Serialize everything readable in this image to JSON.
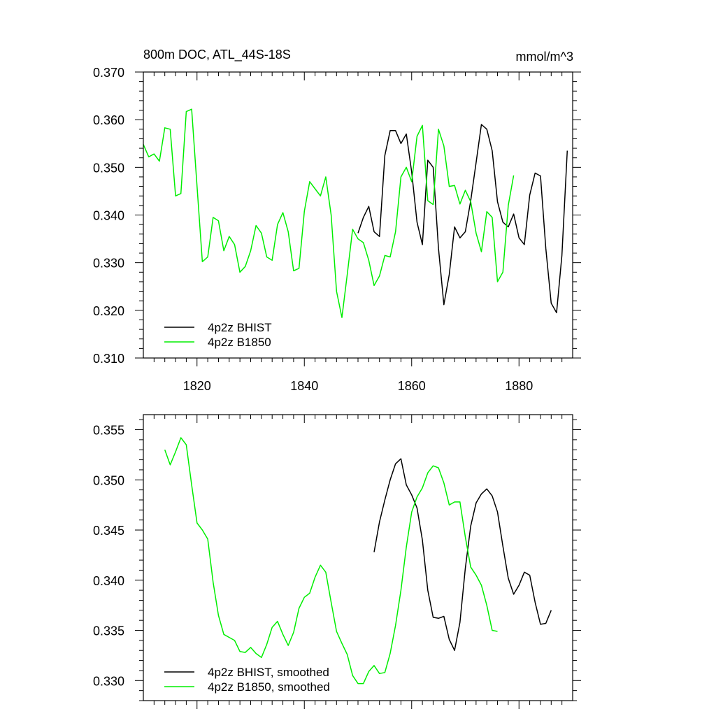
{
  "colors": {
    "bhist": "#000000",
    "b1850": "#00ee00"
  },
  "chart_data": [
    {
      "type": "line",
      "title": "800m DOC, ATL_44S-18S",
      "units": "mmol/m^3",
      "xlim": [
        1810,
        1890
      ],
      "ylim": [
        0.31,
        0.37
      ],
      "x_ticks": [
        1820,
        1840,
        1860,
        1880
      ],
      "x_tick_labels": [
        "1820",
        "1840",
        "1860",
        "1880"
      ],
      "y_ticks": [
        0.31,
        0.32,
        0.33,
        0.34,
        0.35,
        0.36,
        0.37
      ],
      "y_tick_labels": [
        "0.310",
        "0.320",
        "0.330",
        "0.340",
        "0.350",
        "0.360",
        "0.370"
      ],
      "legend": [
        "4p2z BHIST",
        "4p2z B1850"
      ],
      "legend_position": "bottom-left",
      "series": [
        {
          "name": "4p2z BHIST",
          "color": "#000000",
          "x": [
            1850,
            1851,
            1852,
            1853,
            1854,
            1855,
            1856,
            1857,
            1858,
            1859,
            1860,
            1861,
            1862,
            1863,
            1864,
            1865,
            1866,
            1867,
            1868,
            1869,
            1870,
            1871,
            1872,
            1873,
            1874,
            1875,
            1876,
            1877,
            1878,
            1879,
            1880,
            1881,
            1882,
            1883,
            1884,
            1885,
            1886,
            1887,
            1888,
            1889
          ],
          "y": [
            0.3362,
            0.3395,
            0.3418,
            0.3365,
            0.3355,
            0.3525,
            0.3577,
            0.3577,
            0.355,
            0.357,
            0.349,
            0.3385,
            0.3338,
            0.3515,
            0.35,
            0.333,
            0.3212,
            0.3275,
            0.3375,
            0.3352,
            0.3365,
            0.343,
            0.351,
            0.359,
            0.358,
            0.3535,
            0.3428,
            0.3385,
            0.3375,
            0.3402,
            0.3352,
            0.3338,
            0.3442,
            0.3488,
            0.3482,
            0.333,
            0.3215,
            0.3195,
            0.3315,
            0.3535
          ]
        },
        {
          "name": "4p2z B1850",
          "color": "#00ee00",
          "x": [
            1810,
            1811,
            1812,
            1813,
            1814,
            1815,
            1816,
            1817,
            1818,
            1819,
            1820,
            1821,
            1822,
            1823,
            1824,
            1825,
            1826,
            1827,
            1828,
            1829,
            1830,
            1831,
            1832,
            1833,
            1834,
            1835,
            1836,
            1837,
            1838,
            1839,
            1840,
            1841,
            1842,
            1843,
            1844,
            1845,
            1846,
            1847,
            1848,
            1849,
            1850,
            1851,
            1852,
            1853,
            1854,
            1855,
            1856,
            1857,
            1858,
            1859,
            1860,
            1861,
            1862,
            1863,
            1864,
            1865,
            1866,
            1867,
            1868,
            1869,
            1870,
            1871,
            1872,
            1873,
            1874,
            1875,
            1876,
            1877,
            1878,
            1879
          ],
          "y": [
            0.3548,
            0.3522,
            0.3528,
            0.3513,
            0.3583,
            0.358,
            0.344,
            0.3445,
            0.3617,
            0.3622,
            0.346,
            0.3302,
            0.3312,
            0.3395,
            0.3388,
            0.3325,
            0.3355,
            0.3338,
            0.328,
            0.3292,
            0.3325,
            0.3378,
            0.3362,
            0.3312,
            0.3305,
            0.338,
            0.3405,
            0.3365,
            0.3283,
            0.3288,
            0.3408,
            0.347,
            0.3455,
            0.344,
            0.348,
            0.34,
            0.324,
            0.3185,
            0.3275,
            0.337,
            0.335,
            0.3342,
            0.3305,
            0.3252,
            0.3272,
            0.3315,
            0.3312,
            0.3365,
            0.348,
            0.35,
            0.347,
            0.3565,
            0.3588,
            0.343,
            0.3422,
            0.358,
            0.3545,
            0.346,
            0.3462,
            0.3423,
            0.3452,
            0.3428,
            0.3362,
            0.3323,
            0.3407,
            0.3395,
            0.326,
            0.328,
            0.342,
            0.3483
          ]
        }
      ]
    },
    {
      "type": "line",
      "xlim": [
        1810,
        1890
      ],
      "ylim": [
        0.328,
        0.3565
      ],
      "x_ticks": [
        1820,
        1840,
        1860,
        1880
      ],
      "y_ticks": [
        0.33,
        0.335,
        0.34,
        0.345,
        0.35,
        0.355
      ],
      "y_tick_labels": [
        "0.330",
        "0.335",
        "0.340",
        "0.345",
        "0.350",
        "0.355"
      ],
      "legend": [
        "4p2z BHIST, smoothed",
        "4p2z B1850, smoothed"
      ],
      "legend_position": "bottom-left",
      "series": [
        {
          "name": "4p2z BHIST, smoothed",
          "color": "#000000",
          "x": [
            1853,
            1854,
            1855,
            1856,
            1857,
            1858,
            1859,
            1860,
            1861,
            1862,
            1863,
            1864,
            1865,
            1866,
            1867,
            1868,
            1869,
            1870,
            1871,
            1872,
            1873,
            1874,
            1875,
            1876,
            1877,
            1878,
            1879,
            1880,
            1881,
            1882,
            1883,
            1884,
            1885,
            1886
          ],
          "y": [
            0.3428,
            0.3458,
            0.348,
            0.35,
            0.3516,
            0.3521,
            0.3495,
            0.3485,
            0.3472,
            0.344,
            0.339,
            0.3363,
            0.3362,
            0.3364,
            0.3341,
            0.333,
            0.3358,
            0.3412,
            0.3454,
            0.3477,
            0.3486,
            0.3491,
            0.3484,
            0.3468,
            0.3434,
            0.3402,
            0.3386,
            0.3395,
            0.3408,
            0.3405,
            0.3378,
            0.3356,
            0.3357,
            0.337
          ]
        },
        {
          "name": "4p2z B1850, smoothed",
          "color": "#00ee00",
          "x": [
            1814,
            1815,
            1816,
            1817,
            1818,
            1819,
            1820,
            1821,
            1822,
            1823,
            1824,
            1825,
            1826,
            1827,
            1828,
            1829,
            1830,
            1831,
            1832,
            1833,
            1834,
            1835,
            1836,
            1837,
            1838,
            1839,
            1840,
            1841,
            1842,
            1843,
            1844,
            1845,
            1846,
            1847,
            1848,
            1849,
            1850,
            1851,
            1852,
            1853,
            1854,
            1855,
            1856,
            1857,
            1858,
            1859,
            1860,
            1861,
            1862,
            1863,
            1864,
            1865,
            1866,
            1867,
            1868,
            1869,
            1870,
            1871,
            1872,
            1873,
            1874,
            1875,
            1876
          ],
          "y": [
            0.353,
            0.3515,
            0.3528,
            0.3542,
            0.3535,
            0.3495,
            0.3457,
            0.345,
            0.3441,
            0.3398,
            0.3365,
            0.3346,
            0.3343,
            0.334,
            0.3329,
            0.3328,
            0.3333,
            0.3327,
            0.3323,
            0.3336,
            0.3353,
            0.3359,
            0.3346,
            0.3335,
            0.3348,
            0.3372,
            0.3383,
            0.3387,
            0.3403,
            0.3415,
            0.3408,
            0.3378,
            0.3349,
            0.3337,
            0.3326,
            0.3305,
            0.3297,
            0.3297,
            0.3309,
            0.3315,
            0.3307,
            0.3308,
            0.3327,
            0.3355,
            0.339,
            0.3433,
            0.3468,
            0.3483,
            0.3492,
            0.3507,
            0.3514,
            0.3512,
            0.3497,
            0.3475,
            0.3478,
            0.3478,
            0.3443,
            0.3413,
            0.3405,
            0.3395,
            0.3375,
            0.335,
            0.3349
          ]
        }
      ]
    }
  ]
}
